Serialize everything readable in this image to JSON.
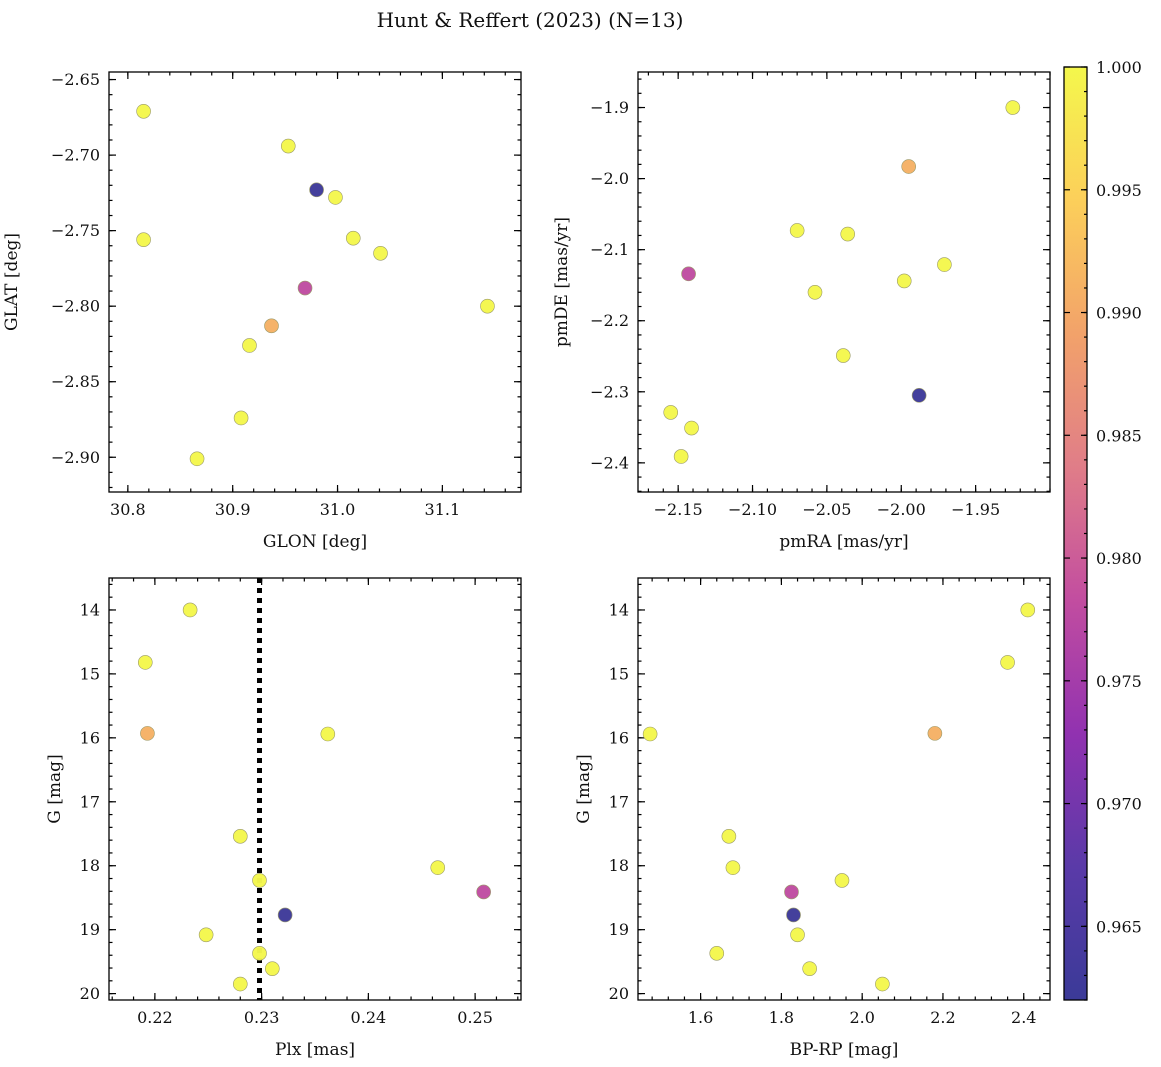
{
  "title": "Hunt & Reffert (2023) (N=13)",
  "colorbar": {
    "range": [
      0.962,
      1.0
    ],
    "ticks": [
      0.965,
      0.97,
      0.975,
      0.98,
      0.985,
      0.99,
      0.995,
      1.0
    ],
    "tick_labels": [
      "0.965",
      "0.970",
      "0.975",
      "0.980",
      "0.985",
      "0.990",
      "0.995",
      "1.000"
    ],
    "colormap": "plasma",
    "stops": [
      "#3b3a98",
      "#5a3aa8",
      "#9132b0",
      "#c24da0",
      "#e07d88",
      "#f2a26a",
      "#fccf5a",
      "#f4f74c"
    ]
  },
  "chart_data": [
    {
      "type": "scatter",
      "id": "glon_glat",
      "xlabel": "GLON [deg]",
      "ylabel": "GLAT [deg]",
      "xlim": [
        30.782,
        31.175
      ],
      "ylim": [
        -2.923,
        -2.645
      ],
      "y_inverted": false,
      "xticks": [
        30.8,
        30.9,
        31.0,
        31.1
      ],
      "xtick_labels": [
        "30.8",
        "30.9",
        "31.0",
        "31.1"
      ],
      "yticks": [
        -2.9,
        -2.85,
        -2.8,
        -2.75,
        -2.7,
        -2.65
      ],
      "ytick_labels": [
        "−2.90",
        "−2.85",
        "−2.80",
        "−2.75",
        "−2.70",
        "−2.65"
      ],
      "points": [
        {
          "x": 30.815,
          "y": -2.671,
          "c": 1.0
        },
        {
          "x": 30.815,
          "y": -2.756,
          "c": 1.0
        },
        {
          "x": 30.953,
          "y": -2.694,
          "c": 1.0
        },
        {
          "x": 30.98,
          "y": -2.723,
          "c": 0.9625
        },
        {
          "x": 30.998,
          "y": -2.728,
          "c": 1.0
        },
        {
          "x": 31.015,
          "y": -2.755,
          "c": 1.0
        },
        {
          "x": 31.041,
          "y": -2.765,
          "c": 1.0
        },
        {
          "x": 30.969,
          "y": -2.788,
          "c": 0.978
        },
        {
          "x": 31.143,
          "y": -2.8,
          "c": 1.0
        },
        {
          "x": 30.937,
          "y": -2.813,
          "c": 0.991
        },
        {
          "x": 30.916,
          "y": -2.826,
          "c": 1.0
        },
        {
          "x": 30.908,
          "y": -2.874,
          "c": 1.0
        },
        {
          "x": 30.866,
          "y": -2.901,
          "c": 1.0
        }
      ]
    },
    {
      "type": "scatter",
      "id": "pmra_pmde",
      "xlabel": "pmRA [mas/yr]",
      "ylabel": "pmDE [mas/yr]",
      "xlim": [
        -2.177,
        -1.9
      ],
      "ylim": [
        -2.441,
        -1.85
      ],
      "y_inverted": false,
      "xticks": [
        -2.15,
        -2.1,
        -2.05,
        -2.0,
        -1.95
      ],
      "xtick_labels": [
        "−2.15",
        "−2.10",
        "−2.05",
        "−2.00",
        "−1.95"
      ],
      "yticks": [
        -2.4,
        -2.3,
        -2.2,
        -2.1,
        -2.0,
        -1.9
      ],
      "ytick_labels": [
        "−2.4",
        "−2.3",
        "−2.2",
        "−2.1",
        "−2.0",
        "−1.9"
      ],
      "points": [
        {
          "x": -1.925,
          "y": -1.9,
          "c": 1.0
        },
        {
          "x": -1.995,
          "y": -1.983,
          "c": 0.991
        },
        {
          "x": -2.07,
          "y": -2.073,
          "c": 1.0
        },
        {
          "x": -2.036,
          "y": -2.078,
          "c": 1.0
        },
        {
          "x": -2.143,
          "y": -2.134,
          "c": 0.978
        },
        {
          "x": -1.971,
          "y": -2.121,
          "c": 1.0
        },
        {
          "x": -1.998,
          "y": -2.144,
          "c": 1.0
        },
        {
          "x": -2.058,
          "y": -2.16,
          "c": 1.0
        },
        {
          "x": -2.039,
          "y": -2.249,
          "c": 1.0
        },
        {
          "x": -1.988,
          "y": -2.305,
          "c": 0.9625
        },
        {
          "x": -2.155,
          "y": -2.329,
          "c": 1.0
        },
        {
          "x": -2.141,
          "y": -2.351,
          "c": 1.0
        },
        {
          "x": -2.148,
          "y": -2.391,
          "c": 1.0
        }
      ]
    },
    {
      "type": "scatter",
      "id": "plx_g",
      "xlabel": "Plx [mas]",
      "ylabel": "G [mag]",
      "xlim": [
        0.2157,
        0.2543
      ],
      "ylim": [
        13.5,
        20.1
      ],
      "y_inverted": true,
      "xticks": [
        0.22,
        0.23,
        0.24,
        0.25
      ],
      "xtick_labels": [
        "0.22",
        "0.23",
        "0.24",
        "0.25"
      ],
      "yticks": [
        14,
        15,
        16,
        17,
        18,
        19,
        20
      ],
      "ytick_labels": [
        "14",
        "15",
        "16",
        "17",
        "18",
        "19",
        "20"
      ],
      "vline": {
        "x": 0.2298,
        "style": "dotted"
      },
      "points": [
        {
          "x": 0.2233,
          "y": 14.0,
          "c": 1.0
        },
        {
          "x": 0.2191,
          "y": 14.82,
          "c": 1.0
        },
        {
          "x": 0.2193,
          "y": 15.93,
          "c": 0.991
        },
        {
          "x": 0.2362,
          "y": 15.94,
          "c": 1.0
        },
        {
          "x": 0.228,
          "y": 17.54,
          "c": 1.0
        },
        {
          "x": 0.2465,
          "y": 18.03,
          "c": 1.0
        },
        {
          "x": 0.2298,
          "y": 18.23,
          "c": 1.0
        },
        {
          "x": 0.2508,
          "y": 18.41,
          "c": 0.978
        },
        {
          "x": 0.2322,
          "y": 18.77,
          "c": 0.9625
        },
        {
          "x": 0.2248,
          "y": 19.08,
          "c": 1.0
        },
        {
          "x": 0.2298,
          "y": 19.37,
          "c": 1.0
        },
        {
          "x": 0.231,
          "y": 19.61,
          "c": 1.0
        },
        {
          "x": 0.228,
          "y": 19.85,
          "c": 1.0
        }
      ]
    },
    {
      "type": "scatter",
      "id": "bprp_g",
      "xlabel": "BP-RP [mag]",
      "ylabel": "G [mag]",
      "xlim": [
        1.445,
        2.465
      ],
      "ylim": [
        13.5,
        20.1
      ],
      "y_inverted": true,
      "xticks": [
        1.6,
        1.8,
        2.0,
        2.2,
        2.4
      ],
      "xtick_labels": [
        "1.6",
        "1.8",
        "2.0",
        "2.2",
        "2.4"
      ],
      "yticks": [
        14,
        15,
        16,
        17,
        18,
        19,
        20
      ],
      "ytick_labels": [
        "14",
        "15",
        "16",
        "17",
        "18",
        "19",
        "20"
      ],
      "points": [
        {
          "x": 2.41,
          "y": 14.0,
          "c": 1.0
        },
        {
          "x": 2.36,
          "y": 14.82,
          "c": 1.0
        },
        {
          "x": 1.475,
          "y": 15.94,
          "c": 1.0
        },
        {
          "x": 2.18,
          "y": 15.93,
          "c": 0.991
        },
        {
          "x": 1.67,
          "y": 17.54,
          "c": 1.0
        },
        {
          "x": 1.68,
          "y": 18.03,
          "c": 1.0
        },
        {
          "x": 1.95,
          "y": 18.23,
          "c": 1.0
        },
        {
          "x": 1.825,
          "y": 18.41,
          "c": 0.978
        },
        {
          "x": 1.83,
          "y": 18.77,
          "c": 0.9625
        },
        {
          "x": 1.84,
          "y": 19.08,
          "c": 1.0
        },
        {
          "x": 1.64,
          "y": 19.37,
          "c": 1.0
        },
        {
          "x": 1.87,
          "y": 19.61,
          "c": 1.0
        },
        {
          "x": 2.05,
          "y": 19.85,
          "c": 1.0
        }
      ]
    }
  ]
}
